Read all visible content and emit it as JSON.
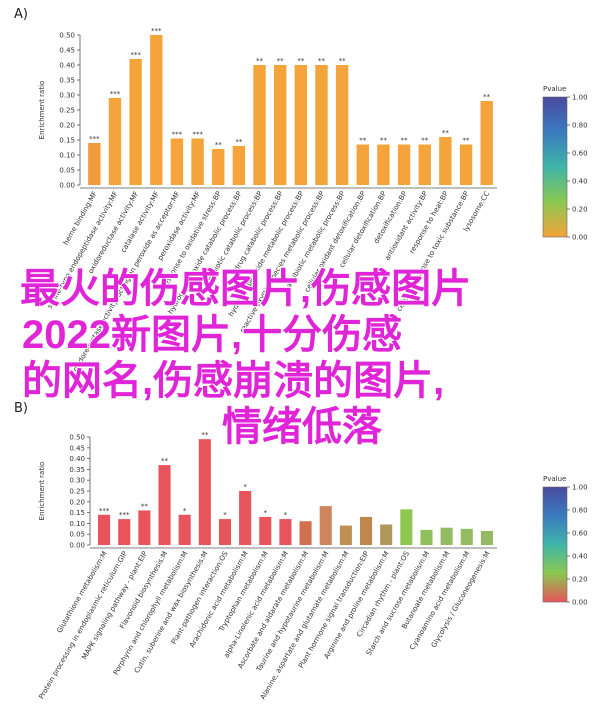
{
  "chart_data": [
    {
      "type": "bar",
      "panel": "A)",
      "ylabel": "Enrichment ratio",
      "categories": [
        "heme binding:MF",
        "serine-type endopeptidase activity:MF",
        "oxidoreductase activity:MF",
        "catalase activity:MF",
        "oxidoreductase activity, acting on peroxide as acceptor:MF",
        "peroxidase activity:MF",
        "response to oxidative stress:BP",
        "hydrogen peroxide catabolic process:BP",
        "antibiotic catabolic process:BP",
        "drug catabolic process:BP",
        "hydrogen peroxide metabolic process:BP",
        "reactive oxygen species metabolic process:BP",
        "antibiotic metabolic process:BP",
        "cellular oxidant detoxification:BP",
        "cellular detoxification:BP",
        "detoxification:BP",
        "antioxidant activity:BP",
        "response to heat:BP",
        "cellular response to toxic substance:BP",
        "lysosome:CC"
      ],
      "values": [
        0.14,
        0.29,
        0.42,
        0.5,
        0.155,
        0.155,
        0.12,
        0.13,
        0.4,
        0.4,
        0.4,
        0.4,
        0.4,
        0.135,
        0.135,
        0.135,
        0.135,
        0.16,
        0.135,
        0.28
      ],
      "significance": [
        "***",
        "***",
        "***",
        "***",
        "***",
        "***",
        "**",
        "**",
        "**",
        "**",
        "**",
        "**",
        "**",
        "**",
        "**",
        "**",
        "**",
        "**",
        "**",
        "**"
      ],
      "colors": [
        "#f29b3a",
        "#f5a33b",
        "#f5a33b",
        "#f5a33b",
        "#f5a33b",
        "#f5a33b",
        "#f5a33b",
        "#f5a33b",
        "#f5a33b",
        "#f5a33b",
        "#f5a33b",
        "#f5a33b",
        "#f5a33b",
        "#f5a33b",
        "#f5a33b",
        "#f5a33b",
        "#f5a33b",
        "#f5a33b",
        "#f5a33b",
        "#f5a33b"
      ],
      "ylim": [
        0,
        0.5
      ],
      "yticks": [
        {
          "value": 0,
          "label": "0.00"
        },
        {
          "value": 0.05,
          "label": "0.05"
        },
        {
          "value": 0.1,
          "label": "0.10"
        },
        {
          "value": 0.15,
          "label": "0.15"
        },
        {
          "value": 0.2,
          "label": "0.20"
        },
        {
          "value": 0.25,
          "label": "0.25"
        },
        {
          "value": 0.3,
          "label": "0.30"
        },
        {
          "value": 0.35,
          "label": "0.35"
        },
        {
          "value": 0.4,
          "label": "0.40"
        },
        {
          "value": 0.45,
          "label": "0.45"
        },
        {
          "value": 0.5,
          "label": "0.50"
        }
      ],
      "colorbar": {
        "title": "Pvalue",
        "lim": [
          0,
          1
        ],
        "colors": [
          "#f5a33b",
          "#8cc850",
          "#3fb5a8",
          "#3a7bbf",
          "#4a4aa0"
        ],
        "ticks": [
          {
            "value": 1,
            "label": "1.00"
          },
          {
            "value": 0.8,
            "label": "0.80"
          },
          {
            "value": 0.6,
            "label": "0.60"
          },
          {
            "value": 0.4,
            "label": "0.40"
          },
          {
            "value": 0.2,
            "label": "0.20"
          },
          {
            "value": 0,
            "label": "0.00"
          }
        ]
      }
    },
    {
      "type": "bar",
      "panel": "B)",
      "ylabel": "Enrichment ratio",
      "categories": [
        "Glutathione metabolism:M",
        "Protein processing in endoplasmic reticulum:GIP",
        "MAPK signaling pathway - plant:EIP",
        "Flavonoid biosynthesis:M",
        "Porphyrin and chlorophyll metabolism:M",
        "Cutin, suberine and wax biosynthesis:M",
        "Plant-pathogen interaction:OS",
        "Arachidonic acid metabolism:M",
        "Tryptophan metabolism:M",
        "alpha-Linolenic acid metabolism:M",
        "Ascorbate and aldarate metabolism:M",
        "Taurine and hypotaurine metabolism:M",
        "Alanine, aspartate and glutamate metabolism:M",
        "Plant hormone signal transduction:EIP",
        "Arginine and proline metabolism:M",
        "Circadian rhythm - plant:OS",
        "Starch and sucrose metabolism:M",
        "Butanoate metabolism:M",
        "Cyanoamino acid metabolism:M",
        "Glycolysis / Gluconeogenesis:M"
      ],
      "values": [
        0.14,
        0.12,
        0.16,
        0.37,
        0.14,
        0.49,
        0.12,
        0.25,
        0.13,
        0.12,
        0.11,
        0.18,
        0.09,
        0.13,
        0.095,
        0.165,
        0.07,
        0.08,
        0.075,
        0.065
      ],
      "significance": [
        "***",
        "***",
        "**",
        "**",
        "*",
        "**",
        "*",
        "*",
        "*",
        "*",
        null,
        null,
        null,
        null,
        null,
        null,
        null,
        null,
        null,
        null
      ],
      "colors": [
        "#e8545c",
        "#e8545c",
        "#e8545c",
        "#e8545c",
        "#e8545c",
        "#e8545c",
        "#e8545c",
        "#e8545c",
        "#e8545c",
        "#e8545c",
        "#d0704f",
        "#d0845e",
        "#bf8f55",
        "#c0884e",
        "#b0985a",
        "#8cc850",
        "#8fc05c",
        "#94bc62",
        "#94bc62",
        "#96ba64"
      ],
      "ylim": [
        0,
        0.5
      ],
      "yticks": [
        {
          "value": 0,
          "label": "0.00"
        },
        {
          "value": 0.05,
          "label": "0.05"
        },
        {
          "value": 0.1,
          "label": "0.10"
        },
        {
          "value": 0.15,
          "label": "0.15"
        },
        {
          "value": 0.2,
          "label": "0.20"
        },
        {
          "value": 0.25,
          "label": "0.25"
        },
        {
          "value": 0.3,
          "label": "0.30"
        },
        {
          "value": 0.35,
          "label": "0.35"
        },
        {
          "value": 0.4,
          "label": "0.40"
        },
        {
          "value": 0.45,
          "label": "0.45"
        },
        {
          "value": 0.5,
          "label": "0.50"
        }
      ],
      "colorbar": {
        "title": "Pvalue",
        "lim": [
          0,
          1
        ],
        "colors": [
          "#e8545c",
          "#8cc850",
          "#3fb5a8",
          "#3a7bbf",
          "#4a4aa0"
        ],
        "ticks": [
          {
            "value": 1,
            "label": "1.00"
          },
          {
            "value": 0.8,
            "label": "0.80"
          },
          {
            "value": 0.6,
            "label": "0.60"
          },
          {
            "value": 0.4,
            "label": "0.40"
          },
          {
            "value": 0.2,
            "label": "0.20"
          },
          {
            "value": 0,
            "label": "0.00"
          }
        ]
      }
    }
  ],
  "overlay_lines": [
    "最火的伤感图片,伤感图片",
    "2022新图片,十分伤感",
    "的网名,伤感崩溃的图片,",
    "情绪低落"
  ]
}
